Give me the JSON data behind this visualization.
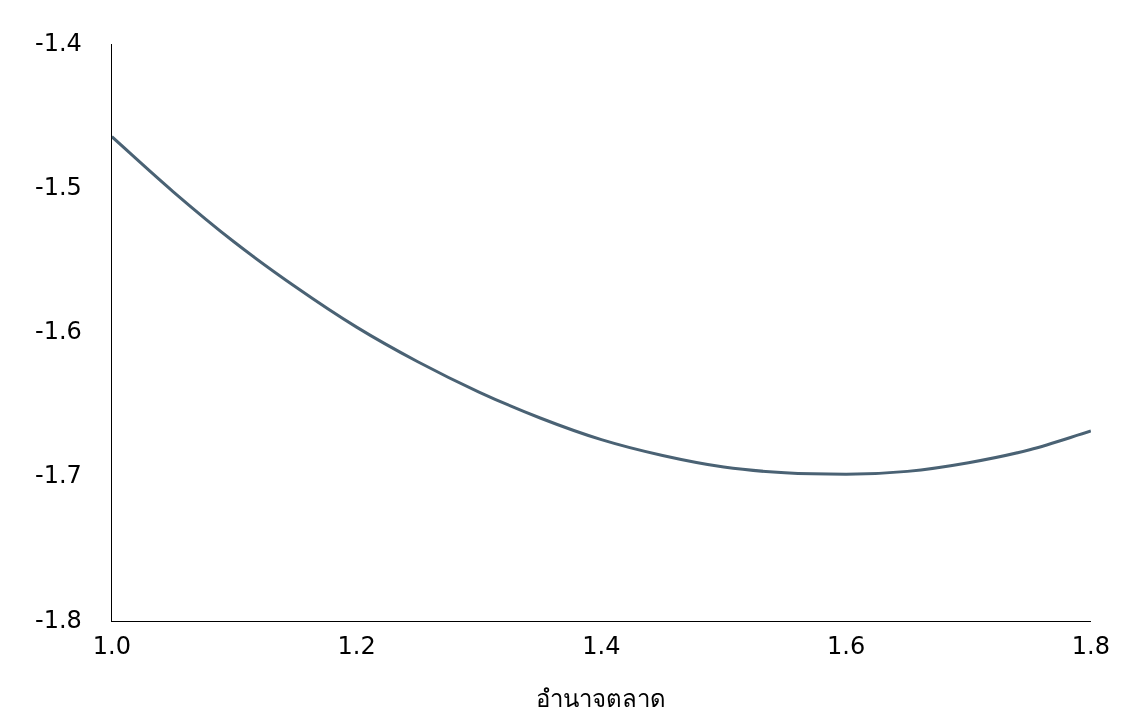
{
  "chart_data": {
    "type": "line",
    "xlabel": "อำนาจตลาด",
    "x": [
      1.0,
      1.05,
      1.1,
      1.15,
      1.2,
      1.25,
      1.3,
      1.35,
      1.4,
      1.45,
      1.5,
      1.55,
      1.6,
      1.65,
      1.7,
      1.75,
      1.8
    ],
    "series": [
      {
        "color": "#4a6274",
        "values": [
          -1.464,
          -1.502,
          -1.537,
          -1.568,
          -1.596,
          -1.62,
          -1.641,
          -1.659,
          -1.674,
          -1.685,
          -1.693,
          -1.697,
          -1.698,
          -1.696,
          -1.69,
          -1.681,
          -1.668
        ]
      }
    ],
    "xlim": [
      1.0,
      1.8
    ],
    "xticks": [
      {
        "value": 1.0,
        "label": "1.0"
      },
      1.2,
      1.4,
      1.6,
      1.8
    ],
    "ylim": [
      -1.8,
      -1.4
    ],
    "yticks": [
      -1.8,
      -1.7,
      -1.6,
      -1.5,
      -1.4
    ],
    "grid": false,
    "legend": false,
    "marker": "none",
    "line_style": "solid"
  }
}
